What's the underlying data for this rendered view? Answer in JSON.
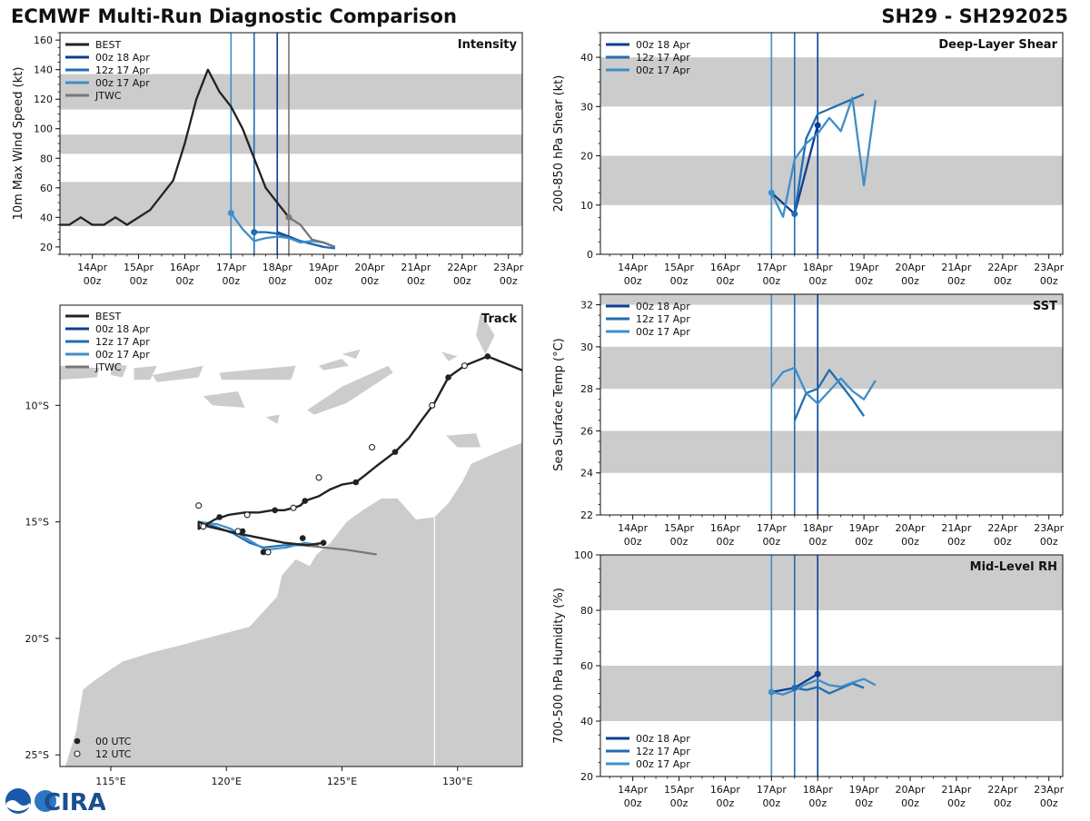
{
  "header": {
    "title": "ECMWF Multi-Run Diagnostic Comparison",
    "storm_id": "SH29 - SH292025"
  },
  "logo": {
    "text": "CIRA"
  },
  "colors": {
    "best": "#222222",
    "run_00z18": "#0b3d91",
    "run_12z17": "#1f6db3",
    "run_00z17": "#3f8ec8",
    "jtwc": "#777777",
    "band": "#cccccc",
    "land": "#cccccc"
  },
  "time_axis": {
    "ticks": [
      {
        "d": 0,
        "day": "14Apr",
        "hour": "00z"
      },
      {
        "d": 1,
        "day": "15Apr",
        "hour": "00z"
      },
      {
        "d": 2,
        "day": "16Apr",
        "hour": "00z"
      },
      {
        "d": 3,
        "day": "17Apr",
        "hour": "00z"
      },
      {
        "d": 4,
        "day": "18Apr",
        "hour": "00z"
      },
      {
        "d": 5,
        "day": "19Apr",
        "hour": "00z"
      },
      {
        "d": 6,
        "day": "20Apr",
        "hour": "00z"
      },
      {
        "d": 7,
        "day": "21Apr",
        "hour": "00z"
      },
      {
        "d": 8,
        "day": "22Apr",
        "hour": "00z"
      },
      {
        "d": 9,
        "day": "23Apr",
        "hour": "00z"
      }
    ],
    "note": "x values are days since 14Apr 00z"
  },
  "chart_data": [
    {
      "id": "intensity",
      "type": "line",
      "title": "Intensity",
      "ylabel": "10m Max Wind Speed (kt)",
      "xlim": [
        -0.7,
        9.3
      ],
      "ylim": [
        15,
        165
      ],
      "yticks": [
        20,
        40,
        60,
        80,
        100,
        120,
        140,
        160
      ],
      "bands": [
        [
          34,
          64
        ],
        [
          83,
          96
        ],
        [
          113,
          137
        ]
      ],
      "vlines": [
        {
          "x": 3.0,
          "series": "run_00z17"
        },
        {
          "x": 3.5,
          "series": "run_12z17"
        },
        {
          "x": 4.0,
          "series": "run_00z18"
        },
        {
          "x": 4.25,
          "series": "jtwc"
        }
      ],
      "legend": [
        "BEST",
        "00z 18 Apr",
        "12z 17 Apr",
        "00z 17 Apr",
        "JTWC"
      ],
      "series": [
        {
          "name": "BEST",
          "key": "best",
          "x": [
            -0.7,
            -0.5,
            -0.25,
            0,
            0.25,
            0.5,
            0.75,
            1.25,
            1.75,
            2,
            2.25,
            2.5,
            2.75,
            3,
            3.25,
            3.5,
            3.75,
            4,
            4.25
          ],
          "y": [
            35,
            35,
            40,
            35,
            35,
            40,
            35,
            45,
            65,
            90,
            120,
            140,
            125,
            115,
            100,
            80,
            60,
            50,
            40
          ]
        },
        {
          "name": "00z 18 Apr",
          "key": "run_00z18",
          "x": [
            4,
            4.25,
            4.5,
            4.75,
            5
          ],
          "y": [
            30,
            27,
            24,
            22,
            20
          ]
        },
        {
          "name": "12z 17 Apr",
          "key": "run_12z17",
          "x": [
            3.5,
            3.75,
            4,
            4.25,
            4.5,
            4.75,
            5,
            5.25
          ],
          "y": [
            30,
            30,
            29,
            26,
            24,
            22,
            20,
            19
          ]
        },
        {
          "name": "00z 17 Apr",
          "key": "run_00z17",
          "x": [
            3,
            3.25,
            3.5,
            3.75,
            4,
            4.25,
            4.5,
            4.75,
            5,
            5.25
          ],
          "y": [
            43,
            32,
            24,
            26,
            27,
            26,
            23,
            24,
            23,
            20
          ]
        },
        {
          "name": "JTWC",
          "key": "jtwc",
          "x": [
            4.25,
            4.5,
            4.75,
            5,
            5.25
          ],
          "y": [
            40,
            35,
            25,
            23,
            20
          ]
        }
      ],
      "markers": [
        {
          "x": 3,
          "y": 43,
          "key": "run_00z17"
        },
        {
          "x": 3.5,
          "y": 30,
          "key": "run_12z17"
        },
        {
          "x": 4.25,
          "y": 40,
          "key": "jtwc"
        }
      ]
    },
    {
      "id": "shear",
      "type": "line",
      "title": "Deep-Layer Shear",
      "ylabel": "200-850 hPa Shear (kt)",
      "xlim": [
        -0.7,
        9.3
      ],
      "ylim": [
        0,
        45
      ],
      "yticks": [
        0,
        10,
        20,
        30,
        40
      ],
      "bands": [
        [
          10,
          20
        ],
        [
          30,
          40
        ]
      ],
      "vlines": [
        {
          "x": 3.0,
          "series": "run_00z17"
        },
        {
          "x": 3.5,
          "series": "run_12z17"
        },
        {
          "x": 4.0,
          "series": "run_00z18"
        }
      ],
      "legend": [
        "00z 18 Apr",
        "12z 17 Apr",
        "00z 17 Apr"
      ],
      "series": [
        {
          "name": "00z 18 Apr",
          "key": "run_00z18",
          "x": [
            3,
            3.5,
            4
          ],
          "y": [
            12.5,
            8.2,
            26.2
          ]
        },
        {
          "name": "12z 17 Apr",
          "key": "run_12z17",
          "x": [
            3.5,
            3.75,
            4,
            4.25,
            4.5,
            4.75,
            5
          ],
          "y": [
            8.2,
            23.5,
            28.5,
            29.5,
            30.5,
            31.5,
            32.5
          ]
        },
        {
          "name": "00z 17 Apr",
          "key": "run_00z17",
          "x": [
            3,
            3.25,
            3.5,
            3.75,
            4,
            4.25,
            4.5,
            4.75,
            5,
            5.25
          ],
          "y": [
            12.5,
            7.6,
            19.3,
            22.5,
            24.5,
            27.7,
            25,
            31.8,
            14,
            31.3
          ]
        }
      ],
      "markers": [
        {
          "x": 3,
          "y": 12.5,
          "key": "run_00z17"
        },
        {
          "x": 3.5,
          "y": 8.2,
          "key": "run_12z17"
        },
        {
          "x": 4,
          "y": 26.2,
          "key": "run_00z18"
        }
      ]
    },
    {
      "id": "sst",
      "type": "line",
      "title": "SST",
      "ylabel": "Sea Surface Temp (°C)",
      "xlim": [
        -0.7,
        9.3
      ],
      "ylim": [
        22,
        32.5
      ],
      "yticks": [
        22,
        24,
        26,
        28,
        30,
        32
      ],
      "bands": [
        [
          24,
          26
        ],
        [
          28,
          30
        ],
        [
          32,
          33
        ]
      ],
      "vlines": [
        {
          "x": 3.0,
          "series": "run_00z17"
        },
        {
          "x": 3.5,
          "series": "run_12z17"
        },
        {
          "x": 4.0,
          "series": "run_00z18"
        }
      ],
      "legend": [
        "00z 18 Apr",
        "12z 17 Apr",
        "00z 17 Apr"
      ],
      "series": [
        {
          "name": "00z 18 Apr",
          "key": "run_00z18",
          "x": [],
          "y": []
        },
        {
          "name": "12z 17 Apr",
          "key": "run_12z17",
          "x": [
            3.5,
            3.75,
            4,
            4.25,
            4.5,
            4.75,
            5
          ],
          "y": [
            26.5,
            27.8,
            28.0,
            28.9,
            28.2,
            27.5,
            26.7
          ]
        },
        {
          "name": "00z 17 Apr",
          "key": "run_00z17",
          "x": [
            3,
            3.25,
            3.5,
            3.75,
            4,
            4.25,
            4.5,
            4.75,
            5,
            5.25
          ],
          "y": [
            28.1,
            28.8,
            29.0,
            27.8,
            27.3,
            27.9,
            28.5,
            27.9,
            27.5,
            28.4
          ]
        }
      ],
      "markers": []
    },
    {
      "id": "rh",
      "type": "line",
      "title": "Mid-Level RH",
      "ylabel": "700-500 hPa Humidity (%)",
      "xlim": [
        -0.7,
        9.3
      ],
      "ylim": [
        20,
        100
      ],
      "yticks": [
        20,
        40,
        60,
        80,
        100
      ],
      "bands": [
        [
          40,
          60
        ],
        [
          80,
          100
        ]
      ],
      "vlines": [
        {
          "x": 3.0,
          "series": "run_00z17"
        },
        {
          "x": 3.5,
          "series": "run_12z17"
        },
        {
          "x": 4.0,
          "series": "run_00z18"
        }
      ],
      "legend": [
        "00z 18 Apr",
        "12z 17 Apr",
        "00z 17 Apr"
      ],
      "series": [
        {
          "name": "00z 18 Apr",
          "key": "run_00z18",
          "x": [
            3,
            3.5,
            4
          ],
          "y": [
            50.5,
            52,
            57
          ]
        },
        {
          "name": "12z 17 Apr",
          "key": "run_12z17",
          "x": [
            3.5,
            3.75,
            4,
            4.25,
            4.5,
            4.75,
            5
          ],
          "y": [
            52,
            51.2,
            52.3,
            50,
            51.8,
            53.6,
            52
          ]
        },
        {
          "name": "00z 17 Apr",
          "key": "run_00z17",
          "x": [
            3,
            3.25,
            3.5,
            3.75,
            4,
            4.25,
            4.5,
            4.75,
            5,
            5.25
          ],
          "y": [
            50.5,
            49.6,
            51.2,
            53.3,
            54.9,
            53,
            52.4,
            53.9,
            55.2,
            53
          ]
        }
      ],
      "markers": [
        {
          "x": 3,
          "y": 50.5,
          "key": "run_00z17"
        },
        {
          "x": 3.5,
          "y": 52,
          "key": "run_12z17"
        },
        {
          "x": 4,
          "y": 57,
          "key": "run_00z18"
        }
      ]
    },
    {
      "id": "track",
      "type": "scatter",
      "title": "Track",
      "xlim": [
        112.8,
        132.8
      ],
      "ylim": [
        -25.5,
        -5.7
      ],
      "xticks": [
        {
          "v": 115,
          "label": "115°E"
        },
        {
          "v": 120,
          "label": "120°E"
        },
        {
          "v": 125,
          "label": "125°E"
        },
        {
          "v": 130,
          "label": "130°E"
        }
      ],
      "yticks": [
        {
          "v": -10,
          "label": "10°S"
        },
        {
          "v": -15,
          "label": "15°S"
        },
        {
          "v": -20,
          "label": "20°S"
        },
        {
          "v": -25,
          "label": "25°S"
        }
      ],
      "legend": [
        "BEST",
        "00z 18 Apr",
        "12z 17 Apr",
        "00z 17 Apr",
        "JTWC"
      ],
      "marker_legend": [
        "00 UTC",
        "12 UTC"
      ],
      "best_track": {
        "lon": [
          132.8,
          131.3,
          130.3,
          129.6,
          129.0,
          128.4,
          127.9,
          127.3,
          126.5,
          126.0,
          125.6,
          125.0,
          124.5,
          124.0,
          123.4,
          123.2,
          122.9,
          122.5,
          122.0,
          121.4,
          120.8,
          120.1,
          119.5,
          118.8,
          118.8,
          119.2,
          120.5,
          121.5,
          122.5,
          123.5,
          124.2
        ],
        "lat": [
          -8.5,
          -7.9,
          -8.3,
          -8.8,
          -9.9,
          -10.7,
          -11.4,
          -12.0,
          -12.6,
          -13.0,
          -13.3,
          -13.4,
          -13.6,
          -13.9,
          -14.1,
          -14.3,
          -14.4,
          -14.5,
          -14.5,
          -14.6,
          -14.6,
          -14.7,
          -14.9,
          -15.3,
          -15.0,
          -15.2,
          -15.5,
          -15.7,
          -15.9,
          -16.0,
          -15.9
        ],
        "points_00utc": [
          [
            131.3,
            -7.9
          ],
          [
            129.6,
            -8.8
          ],
          [
            127.3,
            -12.0
          ],
          [
            125.6,
            -13.3
          ],
          [
            123.4,
            -14.1
          ],
          [
            122.1,
            -14.5
          ],
          [
            119.7,
            -14.8
          ],
          [
            120.7,
            -15.4
          ],
          [
            121.6,
            -16.3
          ],
          [
            123.3,
            -15.7
          ],
          [
            124.2,
            -15.9
          ]
        ],
        "points_12utc": [
          [
            130.3,
            -8.3
          ],
          [
            128.9,
            -10.0
          ],
          [
            126.3,
            -11.8
          ],
          [
            124.0,
            -13.1
          ],
          [
            122.9,
            -14.4
          ],
          [
            120.9,
            -14.7
          ],
          [
            118.8,
            -14.3
          ],
          [
            119.0,
            -15.2
          ],
          [
            120.5,
            -15.4
          ],
          [
            121.8,
            -16.3
          ]
        ]
      },
      "forecasts": [
        {
          "name": "00z 18 Apr",
          "key": "run_00z18",
          "lon": [
            123.3,
            123.6,
            124.0
          ],
          "lat": [
            -16.0,
            -16.0,
            -16.0
          ]
        },
        {
          "name": "12z 17 Apr",
          "key": "run_12z17",
          "lon": [
            118.8,
            119.5,
            120.3,
            121.0,
            121.6,
            122.5,
            123.3
          ],
          "lat": [
            -15.0,
            -15.2,
            -15.5,
            -15.9,
            -16.1,
            -16.0,
            -16.0
          ]
        },
        {
          "name": "00z 17 Apr",
          "key": "run_00z17",
          "lon": [
            118.8,
            119.6,
            120.2,
            121.0,
            121.7,
            122.6,
            123.4,
            124.0
          ],
          "lat": [
            -15.0,
            -15.1,
            -15.3,
            -15.8,
            -16.2,
            -16.1,
            -15.9,
            -16.0
          ]
        },
        {
          "name": "JTWC",
          "key": "jtwc",
          "lon": [
            123.3,
            124.2,
            125.2,
            126.5
          ],
          "lat": [
            -16.0,
            -16.1,
            -16.2,
            -16.4
          ]
        }
      ]
    }
  ]
}
